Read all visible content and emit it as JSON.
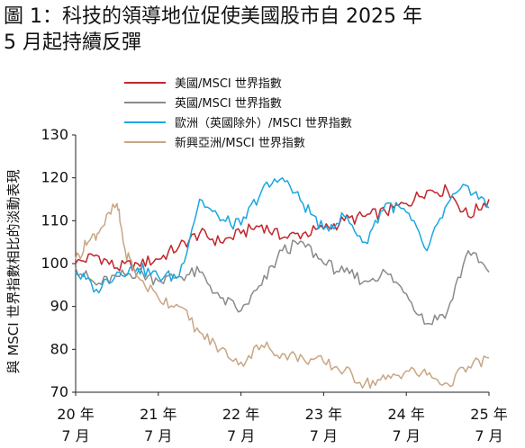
{
  "title_lines": [
    "圖 1：科技的領導地位促使美國股市自 2025 年",
    "5 月起持續反彈"
  ],
  "chart_data": {
    "type": "line",
    "ylabel": "與 MSCI 世界指數相比的淡動表現",
    "ylim": [
      70,
      130
    ],
    "yticks": [
      70,
      80,
      90,
      100,
      110,
      120,
      130
    ],
    "x_ticks": [
      {
        "year": "20 年",
        "month": "7 月",
        "x": 2020.5
      },
      {
        "year": "21 年",
        "month": "7 月",
        "x": 2021.5
      },
      {
        "year": "22 年",
        "month": "7 月",
        "x": 2022.5
      },
      {
        "year": "23 年",
        "month": "7 月",
        "x": 2023.5
      },
      {
        "year": "24 年",
        "month": "7 月",
        "x": 2024.5
      },
      {
        "year": "25 年",
        "month": "7 月",
        "x": 2025.5
      }
    ],
    "xlim": [
      2020.5,
      2025.5
    ],
    "grid": false,
    "legend_position": "top",
    "series": [
      {
        "name": "美國/MSCI 世界指數",
        "color": "#c0272d",
        "x": [
          2020.5,
          2020.75,
          2021.0,
          2021.25,
          2021.5,
          2021.75,
          2022.0,
          2022.25,
          2022.5,
          2022.75,
          2023.0,
          2023.25,
          2023.5,
          2023.75,
          2024.0,
          2024.25,
          2024.5,
          2024.75,
          2025.0,
          2025.25,
          2025.5
        ],
        "y": [
          100,
          102,
          99,
          100,
          101,
          104,
          107,
          105,
          107,
          109,
          106,
          107,
          108,
          110,
          111,
          112,
          114,
          117,
          117,
          111,
          115
        ]
      },
      {
        "name": "英國/MSCI 世界指數",
        "color": "#8a8a8a",
        "x": [
          2020.5,
          2020.75,
          2021.0,
          2021.25,
          2021.5,
          2021.75,
          2022.0,
          2022.25,
          2022.5,
          2022.75,
          2023.0,
          2023.25,
          2023.5,
          2023.75,
          2024.0,
          2024.25,
          2024.5,
          2024.75,
          2025.0,
          2025.25,
          2025.5
        ],
        "y": [
          99,
          95,
          97,
          98,
          96,
          97,
          98,
          92,
          89,
          95,
          103,
          105,
          100,
          98,
          96,
          98,
          93,
          86,
          89,
          103,
          98
        ]
      },
      {
        "name": "歐洲（英國除外）/MSCI 世界指數",
        "color": "#1aa7e0",
        "x": [
          2020.5,
          2020.75,
          2021.0,
          2021.25,
          2021.5,
          2021.75,
          2022.0,
          2022.25,
          2022.5,
          2022.75,
          2023.0,
          2023.25,
          2023.5,
          2023.75,
          2024.0,
          2024.25,
          2024.5,
          2024.75,
          2025.0,
          2025.25,
          2025.5
        ],
        "y": [
          98,
          94,
          98,
          99,
          97,
          97,
          115,
          110,
          109,
          117,
          120,
          114,
          108,
          111,
          105,
          114,
          112,
          103,
          114,
          118,
          113
        ]
      },
      {
        "name": "新興亞洲/MSCI 世界指數",
        "color": "#c8a684",
        "x": [
          2020.5,
          2020.65,
          2020.8,
          2021.0,
          2021.1,
          2021.25,
          2021.5,
          2021.75,
          2022.0,
          2022.25,
          2022.5,
          2022.75,
          2023.0,
          2023.25,
          2023.5,
          2023.75,
          2024.0,
          2024.25,
          2024.5,
          2024.75,
          2025.0,
          2025.25,
          2025.5
        ],
        "y": [
          101,
          105,
          108,
          114,
          103,
          97,
          92,
          90,
          84,
          80,
          77,
          81,
          79,
          78,
          77,
          75,
          72,
          73,
          75,
          74,
          72,
          76,
          78
        ]
      }
    ]
  }
}
